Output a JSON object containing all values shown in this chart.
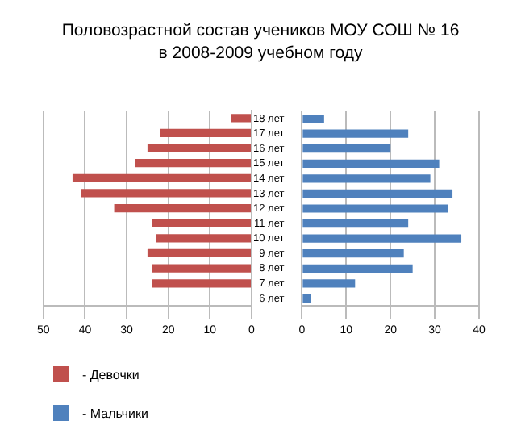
{
  "chart_data": [
    {
      "type": "bar",
      "title": "Половозрастной состав учеников МОУ СОШ № 16\nв 2008-2009  учебном году",
      "orientation": "horizontal",
      "categories": [
        null,
        null,
        null,
        null,
        null,
        null,
        null,
        null,
        null,
        null,
        null,
        null,
        null
      ],
      "series": [
        {
          "name": "- Девочки",
          "color": "#c0504d",
          "values": [
            5,
            22,
            25,
            28,
            43,
            41,
            33,
            24,
            23,
            25,
            24,
            24,
            0
          ]
        }
      ],
      "xlim": [
        50,
        0
      ],
      "xticks": [
        50,
        40,
        30,
        20,
        10,
        0
      ],
      "grid": "x",
      "legend": "bottom",
      "tick_labels": "x"
    },
    {
      "type": "bar",
      "orientation": "horizontal",
      "categories": [
        "18 лет",
        "17 лет",
        "16 лет",
        "15 лет",
        "14 лет",
        "13 лет",
        "12 лет",
        "11 лет",
        "10 лет",
        "9 лет",
        "8 лет",
        "7 лет",
        "6 лет"
      ],
      "series": [
        {
          "name": "- Мальчики",
          "color": "#4f81bd",
          "values": [
            5,
            24,
            20,
            31,
            29,
            34,
            33,
            24,
            36,
            23,
            25,
            12,
            2
          ]
        }
      ],
      "xlim": [
        0,
        40
      ],
      "xticks": [
        0,
        10,
        20,
        30,
        40
      ],
      "grid": "x",
      "legend": "bottom"
    }
  ]
}
